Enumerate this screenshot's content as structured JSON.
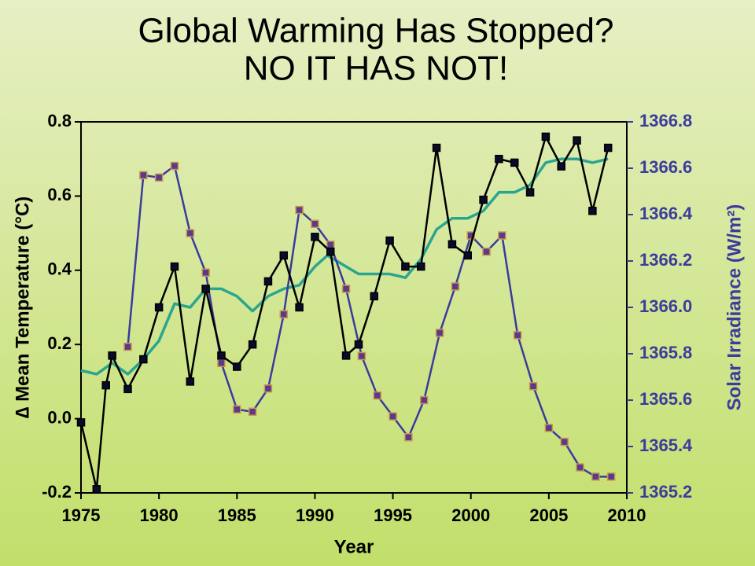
{
  "chart_data": {
    "type": "line",
    "title": "Global Warming Has Stopped?",
    "subtitle": "NO IT HAS NOT!",
    "xlabel": "Year",
    "ylabel": "∆ Mean Temperature (°C)",
    "y2label": "Solar Irradiance (W/m²)",
    "xlim": [
      1975,
      2010
    ],
    "xticks": [
      1975,
      1980,
      1985,
      1990,
      1995,
      2000,
      2005,
      2010
    ],
    "ylim": [
      -0.2,
      0.8
    ],
    "yticks": [
      -0.2,
      {
        "value": 0,
        "label": "0.0"
      },
      0.2,
      0.4,
      0.6,
      0.8
    ],
    "y2lim": [
      1365.2,
      1366.8
    ],
    "y2ticks": [
      1365.2,
      1365.4,
      1365.6,
      1365.8,
      {
        "value": 1366,
        "label": "1366.0"
      },
      1366.2,
      1366.4,
      1366.6,
      1366.8
    ],
    "series": [
      {
        "color": "#2aa58e",
        "markers": false,
        "x": [
          1975,
          1976,
          1977,
          1978,
          1979,
          1980,
          1981,
          1982,
          1983,
          1984,
          1985,
          1986,
          1987,
          1988,
          1989,
          1990,
          1990.8,
          1992,
          1992.8,
          1993.8,
          1994.8,
          1995.8,
          1996.8,
          1997.8,
          1998.8,
          1999.8,
          2000.8,
          2001.8,
          2002.8,
          2003.8,
          2004.8,
          2005.8,
          2006.8,
          2007.8,
          2008.8
        ],
        "values": [
          0.13,
          0.12,
          0.15,
          0.12,
          0.16,
          0.21,
          0.31,
          0.3,
          0.35,
          0.35,
          0.33,
          0.29,
          0.33,
          0.35,
          0.36,
          0.41,
          0.44,
          0.41,
          0.39,
          0.39,
          0.39,
          0.38,
          0.43,
          0.51,
          0.54,
          0.54,
          0.56,
          0.61,
          0.61,
          0.63,
          0.69,
          0.7,
          0.7,
          0.69,
          0.7
        ]
      },
      {
        "color": "#3b3b9c",
        "markers": true,
        "marker_color": "#5b3a8e",
        "marker_edge": "#c89a4a",
        "axis": "y2",
        "x": [
          1978,
          1979,
          1980,
          1981,
          1982,
          1983,
          1984,
          1985,
          1986,
          1987,
          1988,
          1989,
          1990,
          1991,
          1992,
          1993,
          1994,
          1995,
          1996,
          1997,
          1998,
          1999,
          2000,
          2001,
          2002,
          2003,
          2004,
          2005,
          2006,
          2007,
          2008,
          2009
        ],
        "values": [
          1365.83,
          1366.57,
          1366.56,
          1366.61,
          1366.32,
          1366.15,
          1365.76,
          1365.56,
          1365.55,
          1365.65,
          1365.97,
          1366.42,
          1366.36,
          1366.27,
          1366.08,
          1365.79,
          1365.62,
          1365.53,
          1365.44,
          1365.6,
          1365.89,
          1366.09,
          1366.31,
          1366.24,
          1366.31,
          1365.88,
          1365.66,
          1365.48,
          1365.42,
          1365.31,
          1365.27,
          1365.27
        ]
      },
      {
        "color": "#000000",
        "markers": true,
        "marker_color": "#0a0a2a",
        "marker_edge": "#000000",
        "x": [
          1975,
          1976,
          1976.6,
          1977,
          1978,
          1979,
          1980,
          1981,
          1982,
          1983,
          1984,
          1985,
          1986,
          1987,
          1988,
          1989,
          1990,
          1991,
          1992,
          1992.8,
          1993.8,
          1994.8,
          1995.8,
          1996.8,
          1997.8,
          1998.8,
          1999.8,
          2000.8,
          2001.8,
          2002.8,
          2003.8,
          2004.8,
          2005.8,
          2006.8,
          2007.8,
          2008.8
        ],
        "values": [
          -0.01,
          -0.19,
          0.09,
          0.17,
          0.08,
          0.16,
          0.3,
          0.41,
          0.1,
          0.35,
          0.17,
          0.14,
          0.2,
          0.37,
          0.44,
          0.3,
          0.49,
          0.45,
          0.17,
          0.2,
          0.33,
          0.48,
          0.41,
          0.41,
          0.73,
          0.47,
          0.44,
          0.59,
          0.7,
          0.69,
          0.61,
          0.76,
          0.68,
          0.75,
          0.56,
          0.73
        ]
      }
    ]
  }
}
